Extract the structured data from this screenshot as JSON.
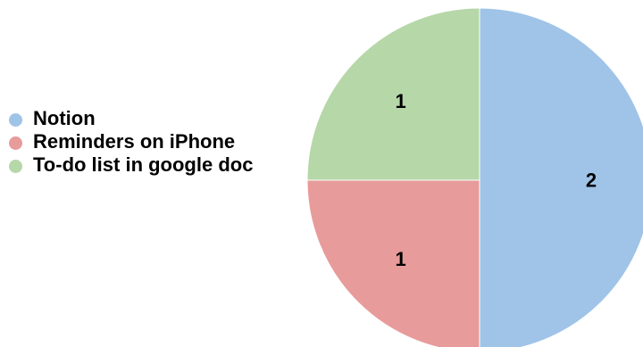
{
  "chart_data": {
    "type": "pie",
    "categories": [
      "Notion",
      "Reminders on iPhone",
      "To-do list in google doc"
    ],
    "values": [
      2,
      1,
      1
    ],
    "colors": [
      "#a0c4e8",
      "#e89b9b",
      "#b6d7a8"
    ],
    "legend_position": "left",
    "data_labels": [
      "2",
      "1",
      "1"
    ]
  }
}
